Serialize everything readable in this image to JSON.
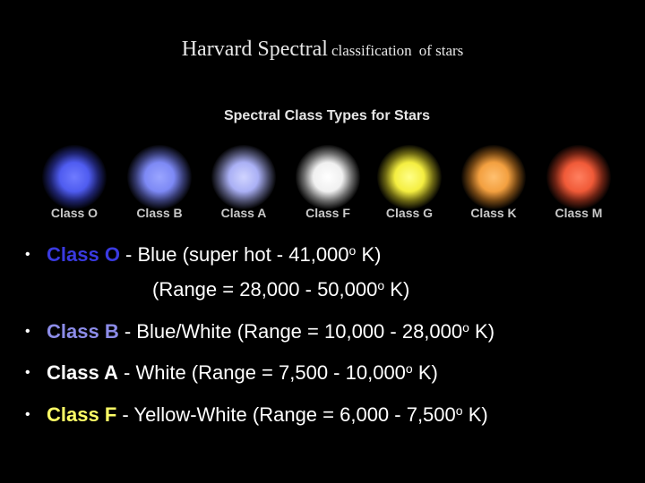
{
  "header": {
    "title_main": "Harvard Spectral",
    "title_rest": "classification",
    "title_end": "of stars"
  },
  "figure": {
    "title": "Spectral Class Types for Stars",
    "stars": [
      "Class O",
      "Class B",
      "Class A",
      "Class F",
      "Class G",
      "Class K",
      "Class M"
    ]
  },
  "bullets": [
    {
      "label": "Class O",
      "text": " - Blue (super hot - 41,000",
      "sup": "o",
      "end": " K)",
      "line2": "(Range = 28,000 - 50,000",
      "sup2": "o",
      "end2": " K)"
    },
    {
      "label": "Class B",
      "text": " - Blue/White (Range = 10,000 - 28,000",
      "sup": "o",
      "end": " K)"
    },
    {
      "label": "Class A",
      "text": " - White (Range = 7,500 - 10,000",
      "sup": "o",
      "end": " K)"
    },
    {
      "label": "Class F",
      "text": " - Yellow-White (Range = 6,000 - 7,500",
      "sup": "o",
      "end": " K)"
    }
  ]
}
